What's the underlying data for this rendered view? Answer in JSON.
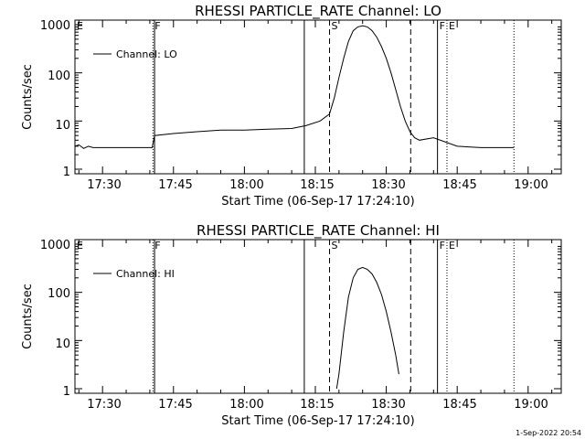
{
  "footer": {
    "stamp": "1-Sep-2022 20:54"
  },
  "chart_data": [
    {
      "type": "line",
      "title": "RHESSI PARTICLE_RATE Channel: LO",
      "xlabel": "Start Time (06-Sep-17 17:24:10)",
      "ylabel": "Counts/sec",
      "y_scale": "log",
      "ylim": [
        1,
        1000
      ],
      "xlim": [
        "17:24:10",
        "19:07:00"
      ],
      "x_ticks": [
        "17:30",
        "17:45",
        "18:00",
        "18:15",
        "18:30",
        "18:45",
        "19:00"
      ],
      "y_ticks": [
        "1",
        "10",
        "100",
        "1000"
      ],
      "legend": {
        "position": "top-left",
        "entries": [
          "Channel: LO"
        ]
      },
      "markers": [
        {
          "time": "17:24:10",
          "label": "E",
          "style": "dotted"
        },
        {
          "time": "17:40:40",
          "label": "F",
          "style": "dotted"
        },
        {
          "time": "17:41:00",
          "label": "",
          "style": "solid"
        },
        {
          "time": "18:12:40",
          "label": "",
          "style": "solid"
        },
        {
          "time": "18:18:00",
          "label": "S",
          "style": "dashed"
        },
        {
          "time": "18:35:10",
          "label": "",
          "style": "dashed"
        },
        {
          "time": "18:40:50",
          "label": "F",
          "style": "solid"
        },
        {
          "time": "18:42:50",
          "label": "E",
          "style": "dotted"
        },
        {
          "time": "18:57:00",
          "label": "",
          "style": "dotted"
        }
      ],
      "series": [
        {
          "name": "Channel: LO",
          "x": [
            "17:24:10",
            "17:25:00",
            "17:26:00",
            "17:27:00",
            "17:28:00",
            "17:29:00",
            "17:32:00",
            "17:36:00",
            "17:40:30",
            "17:41:00",
            "17:45:00",
            "17:50:00",
            "17:55:00",
            "18:00:00",
            "18:05:00",
            "18:10:00",
            "18:13:00",
            "18:16:00",
            "18:18:00",
            "18:19:00",
            "18:20:00",
            "18:21:00",
            "18:22:00",
            "18:23:00",
            "18:24:00",
            "18:25:00",
            "18:26:00",
            "18:27:00",
            "18:28:00",
            "18:29:00",
            "18:30:00",
            "18:31:00",
            "18:32:00",
            "18:33:00",
            "18:34:00",
            "18:35:00",
            "18:36:00",
            "18:37:00",
            "18:40:00",
            "18:45:00",
            "18:50:00",
            "18:55:00",
            "18:57:00"
          ],
          "values": [
            3.0,
            3.2,
            2.7,
            3.0,
            2.8,
            2.8,
            2.8,
            2.8,
            2.8,
            5.0,
            5.5,
            6.0,
            6.5,
            6.5,
            6.8,
            7.0,
            8.0,
            10.0,
            14.0,
            30.0,
            80.0,
            200.0,
            450.0,
            750.0,
            900.0,
            950.0,
            900.0,
            750.0,
            550.0,
            350.0,
            200.0,
            100.0,
            45.0,
            20.0,
            10.0,
            6.0,
            4.5,
            4.0,
            4.5,
            3.0,
            2.8,
            2.8,
            2.8
          ]
        }
      ]
    },
    {
      "type": "line",
      "title": "RHESSI PARTICLE_RATE Channel: HI",
      "xlabel": "Start Time (06-Sep-17 17:24:10)",
      "ylabel": "Counts/sec",
      "y_scale": "log",
      "ylim": [
        1,
        1000
      ],
      "xlim": [
        "17:24:10",
        "19:07:00"
      ],
      "x_ticks": [
        "17:30",
        "17:45",
        "18:00",
        "18:15",
        "18:30",
        "18:45",
        "19:00"
      ],
      "y_ticks": [
        "1",
        "10",
        "100",
        "1000"
      ],
      "legend": {
        "position": "top-left",
        "entries": [
          "Channel: HI"
        ]
      },
      "markers": [
        {
          "time": "17:24:10",
          "label": "E",
          "style": "dotted"
        },
        {
          "time": "17:40:40",
          "label": "F",
          "style": "dotted"
        },
        {
          "time": "17:41:00",
          "label": "",
          "style": "solid"
        },
        {
          "time": "18:12:40",
          "label": "",
          "style": "solid"
        },
        {
          "time": "18:18:00",
          "label": "S",
          "style": "dashed"
        },
        {
          "time": "18:35:10",
          "label": "",
          "style": "dashed"
        },
        {
          "time": "18:40:50",
          "label": "F",
          "style": "solid"
        },
        {
          "time": "18:42:50",
          "label": "E",
          "style": "dotted"
        },
        {
          "time": "18:57:00",
          "label": "",
          "style": "dotted"
        }
      ],
      "series": [
        {
          "name": "Channel: HI",
          "x": [
            "18:19:30",
            "18:20:00",
            "18:21:00",
            "18:22:00",
            "18:23:00",
            "18:24:00",
            "18:25:00",
            "18:26:00",
            "18:27:00",
            "18:28:00",
            "18:29:00",
            "18:30:00",
            "18:31:00",
            "18:32:00",
            "18:32:40"
          ],
          "values": [
            1.0,
            2.0,
            15.0,
            80.0,
            200.0,
            300.0,
            330.0,
            300.0,
            240.0,
            160.0,
            90.0,
            40.0,
            15.0,
            5.0,
            2.0
          ]
        }
      ]
    }
  ]
}
